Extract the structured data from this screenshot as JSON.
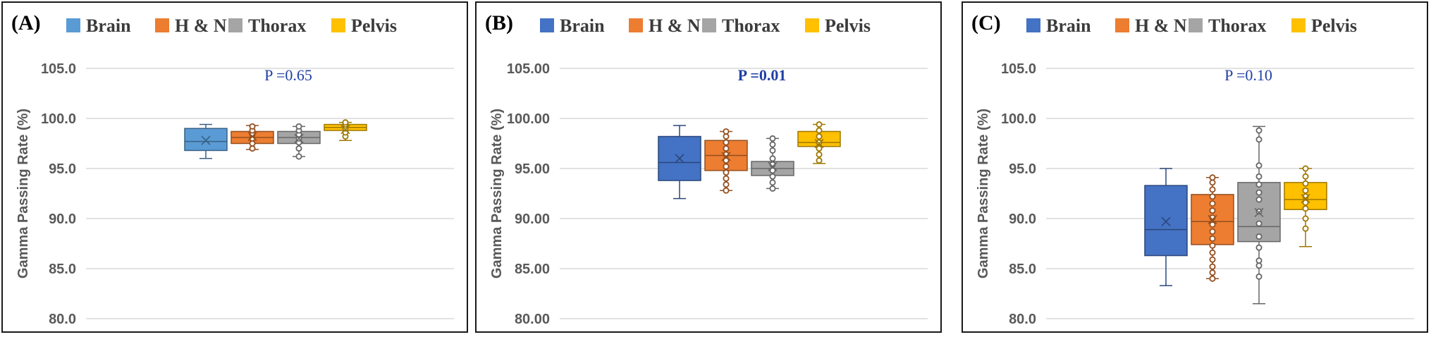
{
  "chart_data": [
    {
      "type": "box",
      "panel_label": "(A)",
      "ylabel": "Gamma Passing Rate (%)",
      "ylim": [
        80,
        105
      ],
      "yticks": [
        "80.0",
        "85.0",
        "90.0",
        "95.0",
        "100.0",
        "105.0"
      ],
      "annotation": "P =0.65",
      "annotation_bold": false,
      "legend_placement": "top",
      "grid": true,
      "series": [
        {
          "name": "Brain",
          "color": "#5b9bd5",
          "min": 96.0,
          "q1": 96.8,
          "median": 97.7,
          "mean": 97.8,
          "q3": 99.0,
          "max": 99.4,
          "points": []
        },
        {
          "name": "H & N",
          "color": "#ed7d31",
          "min": 96.9,
          "q1": 97.5,
          "median": 98.1,
          "mean": 98.2,
          "q3": 98.7,
          "max": 99.3,
          "points": [
            97.0,
            97.5,
            98.0,
            98.4,
            98.8,
            99.2
          ]
        },
        {
          "name": "Thorax",
          "color": "#a5a5a5",
          "min": 96.2,
          "q1": 97.5,
          "median": 98.1,
          "mean": 98.0,
          "q3": 98.7,
          "max": 99.2,
          "points": [
            96.2,
            97.0,
            97.6,
            98.0,
            98.4,
            98.8,
            99.2
          ]
        },
        {
          "name": "Pelvis",
          "color": "#ffc000",
          "min": 97.8,
          "q1": 98.8,
          "median": 99.1,
          "mean": 98.9,
          "q3": 99.4,
          "max": 99.6,
          "points": [
            98.2,
            98.6,
            99.0,
            99.4,
            99.6
          ]
        }
      ]
    },
    {
      "type": "box",
      "panel_label": "(B)",
      "ylabel": "Gamma Passing Rate (%)",
      "ylim": [
        80,
        105
      ],
      "yticks": [
        "80.00",
        "85.00",
        "90.00",
        "95.00",
        "100.00",
        "105.00"
      ],
      "annotation": "P =0.01",
      "annotation_bold": true,
      "legend_placement": "top",
      "grid": true,
      "series": [
        {
          "name": "Brain",
          "color": "#4472c4",
          "min": 92.0,
          "q1": 93.8,
          "median": 95.6,
          "mean": 96.0,
          "q3": 98.2,
          "max": 99.3,
          "points": []
        },
        {
          "name": "H & N",
          "color": "#ed7d31",
          "min": 92.8,
          "q1": 94.8,
          "median": 96.3,
          "mean": 96.2,
          "q3": 97.8,
          "max": 98.7,
          "points": [
            92.8,
            93.4,
            94.0,
            94.6,
            95.2,
            95.8,
            96.4,
            97.0,
            97.6,
            98.2,
            98.7
          ]
        },
        {
          "name": "Thorax",
          "color": "#a5a5a5",
          "min": 93.0,
          "q1": 94.3,
          "median": 95.0,
          "mean": 95.2,
          "q3": 95.7,
          "max": 98.0,
          "points": [
            93.0,
            93.6,
            94.2,
            94.8,
            95.4,
            96.0,
            96.8,
            97.4,
            98.0
          ]
        },
        {
          "name": "Pelvis",
          "color": "#ffc000",
          "min": 95.5,
          "q1": 97.2,
          "median": 97.6,
          "mean": 97.5,
          "q3": 98.7,
          "max": 99.4,
          "points": [
            95.8,
            96.4,
            97.0,
            97.6,
            98.2,
            98.8,
            99.4
          ]
        }
      ]
    },
    {
      "type": "box",
      "panel_label": "(C)",
      "ylabel": "Gamma Passing Rate (%)",
      "ylim": [
        80,
        105
      ],
      "yticks": [
        "80.0",
        "85.0",
        "90.0",
        "95.0",
        "100.0",
        "105.0"
      ],
      "annotation": "P =0.10",
      "annotation_bold": false,
      "legend_placement": "top",
      "grid": true,
      "series": [
        {
          "name": "Brain",
          "color": "#4472c4",
          "min": 83.3,
          "q1": 86.3,
          "median": 88.9,
          "mean": 89.7,
          "q3": 93.3,
          "max": 95.0,
          "points": []
        },
        {
          "name": "H & N",
          "color": "#ed7d31",
          "min": 84.0,
          "q1": 87.4,
          "median": 89.7,
          "mean": 89.9,
          "q3": 92.4,
          "max": 94.1,
          "points": [
            84.0,
            84.6,
            85.2,
            85.9,
            86.6,
            87.3,
            88.0,
            88.7,
            89.4,
            90.1,
            90.8,
            91.5,
            92.2,
            92.9,
            93.6,
            94.1
          ]
        },
        {
          "name": "Thorax",
          "color": "#a5a5a5",
          "min": 81.5,
          "q1": 87.7,
          "median": 89.2,
          "mean": 90.6,
          "q3": 93.6,
          "max": 99.2,
          "points": [
            84.2,
            85.3,
            85.8,
            87.1,
            88.2,
            89.5,
            90.7,
            91.9,
            92.6,
            93.4,
            94.2,
            95.3,
            97.9,
            98.8
          ]
        },
        {
          "name": "Pelvis",
          "color": "#ffc000",
          "min": 87.2,
          "q1": 90.9,
          "median": 91.9,
          "mean": 92.0,
          "q3": 93.6,
          "max": 95.0,
          "points": [
            89.0,
            90.0,
            91.0,
            91.6,
            92.2,
            92.8,
            93.5,
            94.2,
            95.0
          ]
        }
      ]
    }
  ]
}
